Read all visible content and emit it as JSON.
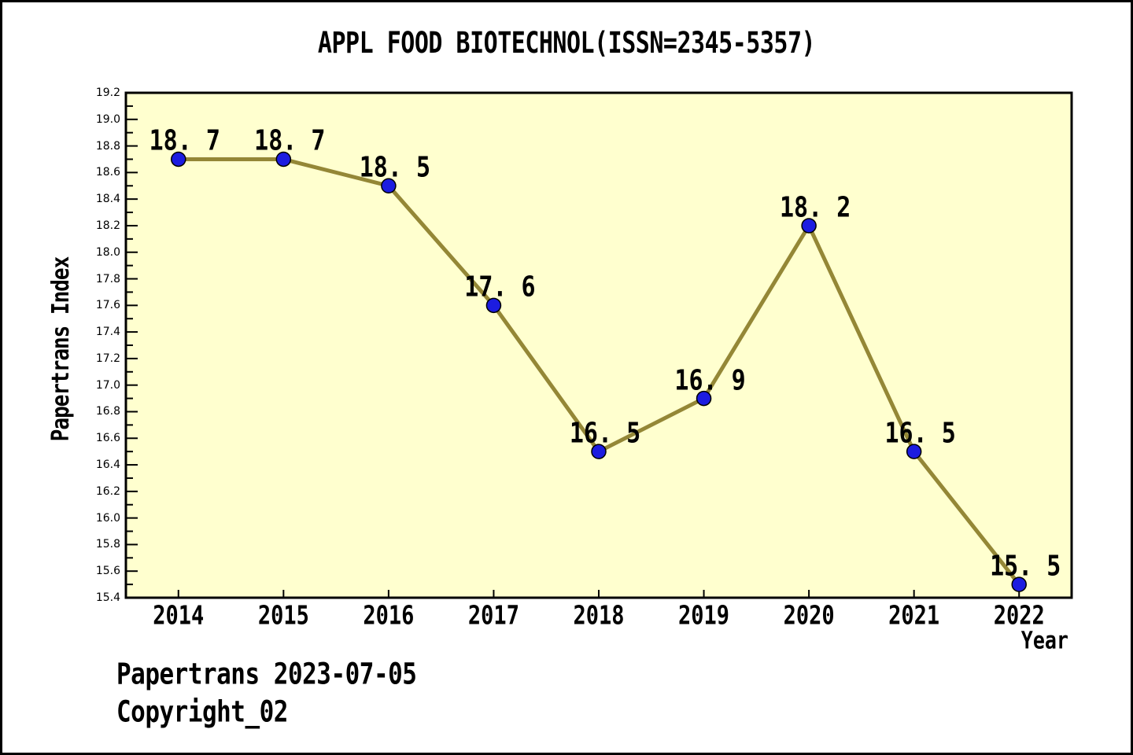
{
  "page": {
    "background": "#ffffff",
    "border_color": "#000000"
  },
  "chart_data": {
    "type": "line",
    "title": "APPL FOOD BIOTECHNOL(ISSN=2345-5357)",
    "xlabel": "Year",
    "ylabel": "Papertrans Index",
    "x": [
      2014,
      2015,
      2016,
      2017,
      2018,
      2019,
      2020,
      2021,
      2022
    ],
    "values": [
      18.7,
      18.7,
      18.5,
      17.6,
      16.5,
      16.9,
      18.2,
      16.5,
      15.5
    ],
    "point_labels": [
      "18. 7",
      "18. 7",
      "18. 5",
      "17. 6",
      "16. 5",
      "16. 9",
      "18. 2",
      "16. 5",
      "15. 5"
    ],
    "xlim": [
      2013.5,
      2022.5
    ],
    "ylim": [
      15.4,
      19.2
    ],
    "y_major_step": 0.2,
    "y_minor_step": 0.1,
    "grid": false,
    "legend_position": "none",
    "colors": {
      "line": "#948736",
      "marker": "#1c1ce0",
      "marker_edge": "#000000",
      "plot_bg": "#ffffcf",
      "axis": "#000000",
      "text": "#000000"
    }
  },
  "footer": {
    "line1": "Papertrans 2023-07-05",
    "line2": "Copyright_02"
  }
}
